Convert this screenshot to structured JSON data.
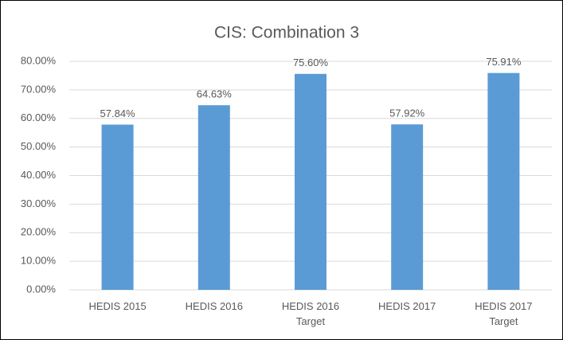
{
  "chart_data": {
    "type": "bar",
    "title": "CIS: Combination 3",
    "categories": [
      "HEDIS 2015",
      "HEDIS 2016",
      "HEDIS 2016 Target",
      "HEDIS 2017",
      "HEDIS 2017 Target"
    ],
    "values": [
      57.84,
      64.63,
      75.6,
      57.92,
      75.91
    ],
    "value_labels": [
      "57.84%",
      "64.63%",
      "75.60%",
      "57.92%",
      "75.91%"
    ],
    "color": "#5b9bd5",
    "ylim": [
      0,
      80
    ],
    "yticks": [
      {
        "value": 0,
        "label": "0.00%"
      },
      {
        "value": 10,
        "label": "10.00%"
      },
      {
        "value": 20,
        "label": "20.00%"
      },
      {
        "value": 30,
        "label": "30.00%"
      },
      {
        "value": 40,
        "label": "40.00%"
      },
      {
        "value": 50,
        "label": "50.00%"
      },
      {
        "value": 60,
        "label": "60.00%"
      },
      {
        "value": 70,
        "label": "70.00%"
      },
      {
        "value": 80,
        "label": "80.00%"
      }
    ],
    "grid": true
  }
}
